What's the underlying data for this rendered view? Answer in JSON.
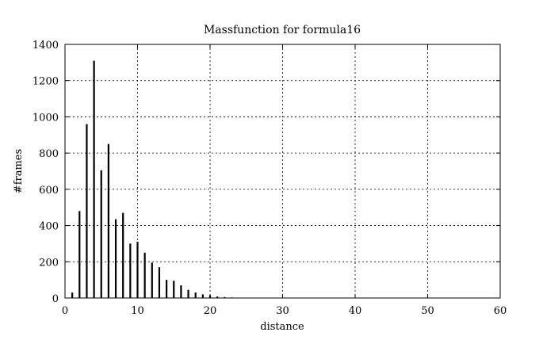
{
  "chart_data": {
    "type": "bar",
    "title": "Massfunction for formula16",
    "xlabel": "distance",
    "ylabel": "#frames",
    "xlim": [
      0,
      60
    ],
    "ylim": [
      0,
      1400
    ],
    "xticks": [
      0,
      10,
      20,
      30,
      40,
      50,
      60
    ],
    "yticks": [
      0,
      200,
      400,
      600,
      800,
      1000,
      1200,
      1400
    ],
    "grid": true,
    "x": [
      1,
      2,
      3,
      4,
      5,
      6,
      7,
      8,
      9,
      10,
      11,
      12,
      13,
      14,
      15,
      16,
      17,
      18,
      19,
      20,
      21,
      22,
      23
    ],
    "values": [
      30,
      480,
      960,
      1310,
      705,
      850,
      435,
      470,
      300,
      310,
      250,
      195,
      170,
      100,
      95,
      70,
      45,
      30,
      20,
      15,
      8,
      5,
      3
    ]
  }
}
